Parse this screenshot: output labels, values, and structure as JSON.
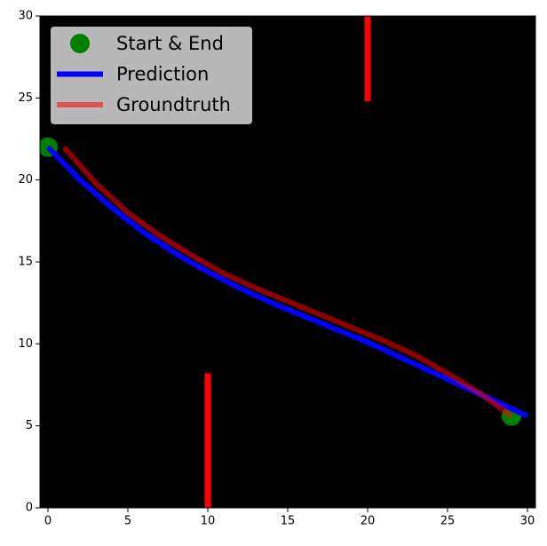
{
  "chart_data": {
    "type": "line",
    "xlim": [
      -0.5,
      30.5
    ],
    "ylim": [
      0,
      30
    ],
    "xticks": [
      0,
      5,
      10,
      15,
      20,
      25,
      30
    ],
    "yticks": [
      0,
      5,
      10,
      15,
      20,
      25,
      30
    ],
    "background": "#000000",
    "legend": "upper left",
    "series": [
      {
        "name": "Start & End",
        "kind": "scatter",
        "color": "#008000",
        "x": [
          0,
          29
        ],
        "values": [
          22,
          5.6
        ]
      },
      {
        "name": "Prediction",
        "kind": "line",
        "color": "#0000ff",
        "alpha": 1,
        "x": [
          0,
          2,
          4,
          6,
          8,
          10,
          12,
          14,
          16,
          18,
          20,
          22,
          24,
          26,
          28,
          30
        ],
        "values": [
          22,
          20,
          18.3,
          16.8,
          15.5,
          14.4,
          13.4,
          12.5,
          11.7,
          10.9,
          10.1,
          9.2,
          8.3,
          7.4,
          6.5,
          5.6
        ]
      },
      {
        "name": "Groundtruth",
        "kind": "line",
        "color": "#ff0000",
        "alpha": 0.55,
        "x": [
          1,
          3,
          5,
          7,
          9,
          11,
          13,
          15,
          17,
          19,
          21,
          23,
          25,
          27,
          29
        ],
        "values": [
          22,
          19.8,
          18,
          16.6,
          15.4,
          14.3,
          13.4,
          12.6,
          11.8,
          11,
          10.2,
          9.3,
          8.2,
          7,
          5.6
        ]
      }
    ],
    "obstacles": [
      {
        "color": "#ff0000",
        "x": [
          10,
          10
        ],
        "values": [
          0,
          8.2
        ]
      },
      {
        "color": "#ff0000",
        "x": [
          20,
          20
        ],
        "values": [
          24.8,
          30
        ]
      }
    ]
  }
}
